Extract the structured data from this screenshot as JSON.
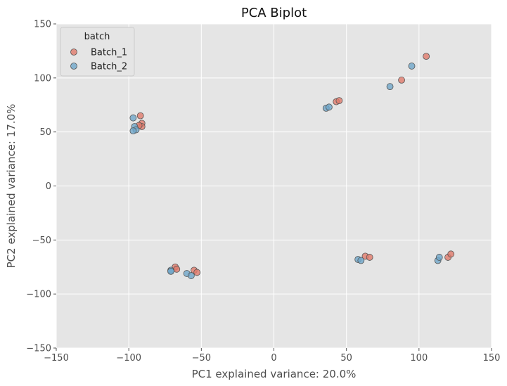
{
  "chart_data": {
    "type": "scatter",
    "title": "PCA Biplot",
    "xlabel": "PC1 explained variance: 20.0%",
    "ylabel": "PC2 explained variance: 17.0%",
    "xlim": [
      -150,
      150
    ],
    "ylim": [
      -150,
      150
    ],
    "xticks": [
      -150,
      -100,
      -50,
      0,
      50,
      100,
      150
    ],
    "yticks": [
      -150,
      -100,
      -50,
      0,
      50,
      100,
      150
    ],
    "grid": true,
    "legend": {
      "title": "batch",
      "placement": "top-left"
    },
    "background_color": "#e5e5e5",
    "series": [
      {
        "name": "Batch_1",
        "color": "#e07b6c",
        "points": [
          [
            -92,
            65
          ],
          [
            -91,
            58
          ],
          [
            -91,
            55
          ],
          [
            -93,
            56
          ],
          [
            43,
            78
          ],
          [
            45,
            79
          ],
          [
            88,
            98
          ],
          [
            105,
            120
          ],
          [
            -68,
            -75
          ],
          [
            -67,
            -77
          ],
          [
            -55,
            -78
          ],
          [
            -53,
            -80
          ],
          [
            63,
            -65
          ],
          [
            66,
            -66
          ],
          [
            120,
            -66
          ],
          [
            122,
            -63
          ]
        ]
      },
      {
        "name": "Batch_2",
        "color": "#6fa6c9",
        "points": [
          [
            -97,
            63
          ],
          [
            -96,
            55
          ],
          [
            -95,
            52
          ],
          [
            -97,
            51
          ],
          [
            36,
            72
          ],
          [
            38,
            73
          ],
          [
            80,
            92
          ],
          [
            95,
            111
          ],
          [
            -71,
            -78
          ],
          [
            -71,
            -79
          ],
          [
            -60,
            -81
          ],
          [
            -57,
            -83
          ],
          [
            58,
            -68
          ],
          [
            60,
            -69
          ],
          [
            113,
            -69
          ],
          [
            114,
            -66
          ]
        ]
      }
    ]
  }
}
